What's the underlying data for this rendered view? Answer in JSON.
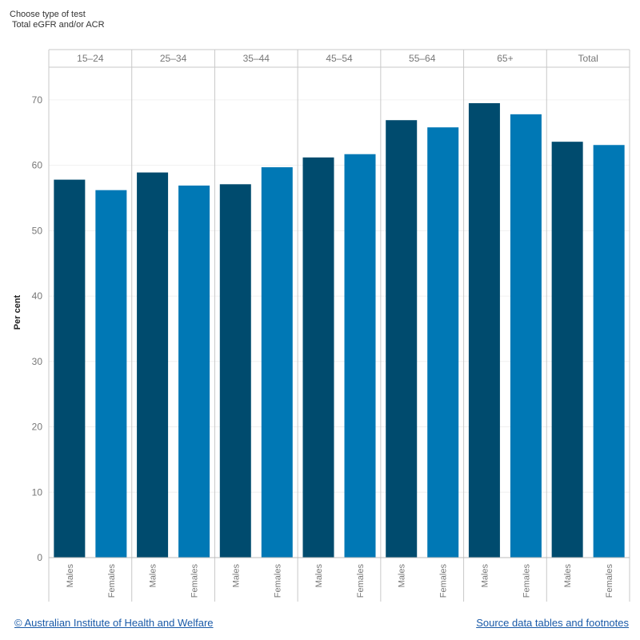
{
  "filter": {
    "label": "Choose type of test",
    "value": "Total eGFR and/or ACR"
  },
  "chart_data": {
    "type": "bar",
    "ylabel": "Per cent",
    "ylim": [
      0,
      75
    ],
    "yticks": [
      0,
      10,
      20,
      30,
      40,
      50,
      60,
      70
    ],
    "groups": [
      "15–24",
      "25–34",
      "35–44",
      "45–54",
      "55–64",
      "65+",
      "Total"
    ],
    "series": [
      {
        "name": "Males",
        "color": "#004b6e",
        "values": [
          57.8,
          58.9,
          57.1,
          61.2,
          66.9,
          69.5,
          63.6
        ]
      },
      {
        "name": "Females",
        "color": "#0078b5",
        "values": [
          56.2,
          56.9,
          59.7,
          61.7,
          65.8,
          67.8,
          63.1
        ]
      }
    ],
    "grid": true
  },
  "footer": {
    "copyright": "© Australian Institute of Health and Welfare",
    "source": "Source data tables and footnotes"
  }
}
